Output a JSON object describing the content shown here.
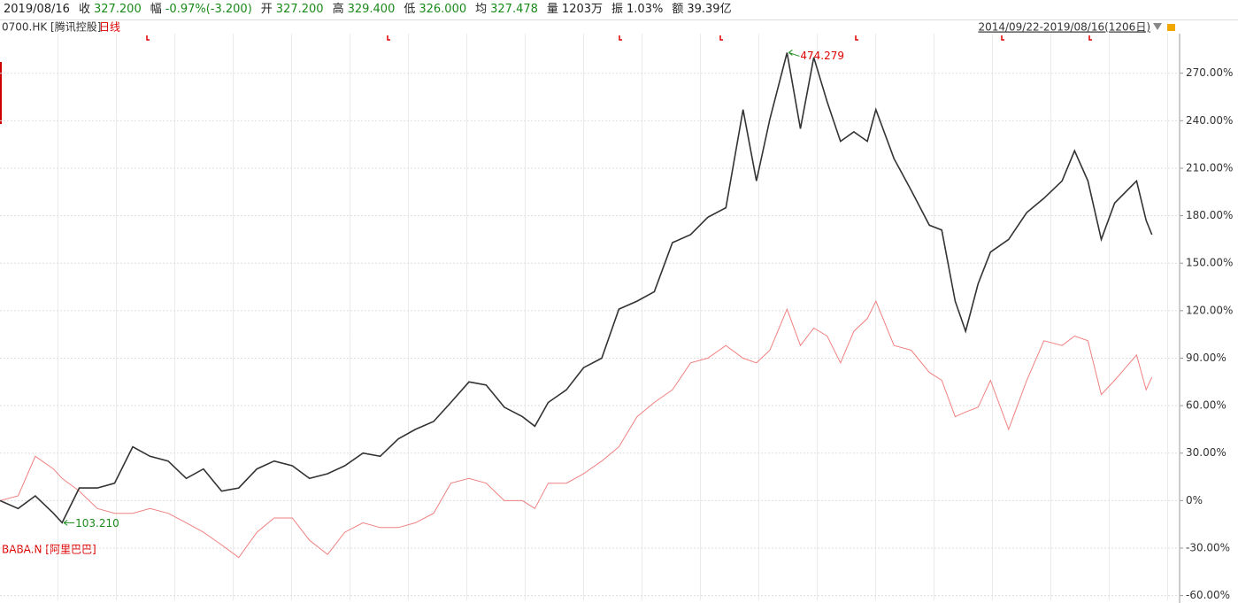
{
  "header": {
    "date": "2019/08/16",
    "items": [
      {
        "label": "收",
        "value": "327.200"
      },
      {
        "label": "幅",
        "value": "-0.97%(-3.200)"
      },
      {
        "label": "开",
        "value": "327.200"
      },
      {
        "label": "高",
        "value": "329.400"
      },
      {
        "label": "低",
        "value": "326.000"
      },
      {
        "label": "均",
        "value": "327.478"
      },
      {
        "label": "量",
        "value": "1203万"
      },
      {
        "label": "振",
        "value": "1.03%"
      },
      {
        "label": "额",
        "value": "39.39亿"
      }
    ]
  },
  "chart_data": {
    "type": "line",
    "period": "日线",
    "range_label": "2014/09/22-2019/08/16(1206日)",
    "annotations": {
      "max": "474.279",
      "min": "103.210"
    },
    "x": [
      0,
      19,
      37,
      56,
      65,
      83,
      102,
      120,
      139,
      157,
      176,
      195,
      213,
      232,
      250,
      269,
      287,
      306,
      324,
      343,
      361,
      380,
      398,
      417,
      435,
      454,
      472,
      491,
      509,
      528,
      547,
      560,
      574,
      593,
      611,
      630,
      648,
      667,
      685,
      704,
      723,
      741,
      760,
      778,
      792,
      806,
      824,
      838,
      852,
      866,
      880,
      894,
      908,
      917,
      936,
      954,
      973,
      986,
      1000,
      1011,
      1024,
      1037,
      1056,
      1075,
      1093,
      1112,
      1125,
      1139,
      1153,
      1167,
      1190,
      1200,
      1206
    ],
    "xlim": [
      0,
      1235
    ],
    "ylim": [
      -63,
      295
    ],
    "yticks": [
      {
        "value": 270,
        "label": "270.00%"
      },
      {
        "value": 240,
        "label": "240.00%"
      },
      {
        "value": 210,
        "label": "210.00%"
      },
      {
        "value": 180,
        "label": "180.00%"
      },
      {
        "value": 150,
        "label": "150.00%"
      },
      {
        "value": 120,
        "label": "120.00%"
      },
      {
        "value": 90,
        "label": "90.00%"
      },
      {
        "value": 60,
        "label": "60.00%"
      },
      {
        "value": 30,
        "label": "30.00%"
      },
      {
        "value": 0,
        "label": "0%"
      },
      {
        "value": -30,
        "label": "-30.00%"
      },
      {
        "value": -60,
        "label": "-60.00%"
      }
    ],
    "grid": true,
    "series": [
      {
        "name": "0700.HK [腾讯控股]",
        "color": "#333333",
        "values": [
          0,
          -5,
          3,
          -8,
          -14,
          8,
          8,
          11,
          34,
          28,
          25,
          14,
          20,
          6,
          8,
          20,
          25,
          22,
          14,
          17,
          22,
          30,
          28,
          39,
          45,
          50,
          62,
          75,
          73,
          59,
          53,
          47,
          62,
          70,
          84,
          90,
          121,
          126,
          132,
          163,
          168,
          179,
          185,
          247,
          202,
          241,
          283,
          235,
          280,
          252,
          227,
          233,
          227,
          247,
          216,
          196,
          174,
          171,
          126,
          107,
          137,
          157,
          165,
          182,
          191,
          202,
          221,
          202,
          165,
          188,
          202,
          177,
          168
        ]
      },
      {
        "name": "BABA.N [阿里巴巴]",
        "color": "#f08080",
        "values": [
          0,
          3,
          28,
          20,
          14,
          6,
          -5,
          -8,
          -8,
          -5,
          -8,
          -14,
          -20,
          -28,
          -36,
          -20,
          -11,
          -11,
          -25,
          -34,
          -20,
          -14,
          -17,
          -17,
          -14,
          -8,
          11,
          14,
          11,
          0,
          0,
          -5,
          11,
          11,
          17,
          25,
          34,
          53,
          62,
          70,
          87,
          90,
          98,
          90,
          87,
          95,
          121,
          98,
          109,
          104,
          87,
          107,
          115,
          126,
          98,
          95,
          81,
          76,
          53,
          56,
          59,
          76,
          45,
          76,
          101,
          98,
          104,
          101,
          67,
          76,
          92,
          70,
          78
        ]
      }
    ]
  }
}
